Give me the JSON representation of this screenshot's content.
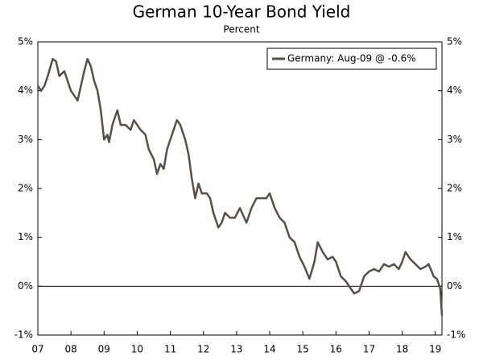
{
  "chart_data": {
    "type": "line",
    "title": "German 10-Year Bond Yield",
    "subtitle": "Percent",
    "x": [
      2007.0,
      2007.1,
      2007.2,
      2007.3,
      2007.45,
      2007.55,
      2007.65,
      2007.8,
      2007.9,
      2008.0,
      2008.1,
      2008.2,
      2008.3,
      2008.4,
      2008.5,
      2008.6,
      2008.7,
      2008.8,
      2008.9,
      2009.0,
      2009.1,
      2009.15,
      2009.25,
      2009.4,
      2009.5,
      2009.65,
      2009.8,
      2009.9,
      2010.0,
      2010.1,
      2010.25,
      2010.35,
      2010.5,
      2010.6,
      2010.7,
      2010.8,
      2010.9,
      2011.0,
      2011.1,
      2011.2,
      2011.3,
      2011.45,
      2011.55,
      2011.65,
      2011.75,
      2011.85,
      2011.95,
      2012.1,
      2012.2,
      2012.3,
      2012.45,
      2012.55,
      2012.65,
      2012.8,
      2012.95,
      2013.1,
      2013.3,
      2013.45,
      2013.6,
      2013.75,
      2013.9,
      2014.0,
      2014.15,
      2014.3,
      2014.45,
      2014.6,
      2014.75,
      2014.9,
      2015.05,
      2015.2,
      2015.35,
      2015.45,
      2015.6,
      2015.75,
      2015.9,
      2016.0,
      2016.15,
      2016.3,
      2016.45,
      2016.55,
      2016.7,
      2016.85,
      2017.0,
      2017.15,
      2017.3,
      2017.45,
      2017.6,
      2017.75,
      2017.9,
      2018.0,
      2018.1,
      2018.25,
      2018.4,
      2018.55,
      2018.7,
      2018.8,
      2018.95,
      2019.05,
      2019.15,
      2019.2
    ],
    "series": [
      {
        "name": "Germany: Aug-09 @ -0.6%",
        "color": "#5b4f45",
        "values": [
          4.1,
          4.0,
          4.1,
          4.3,
          4.65,
          4.6,
          4.3,
          4.4,
          4.2,
          4.0,
          3.9,
          3.8,
          4.1,
          4.4,
          4.65,
          4.5,
          4.2,
          4.0,
          3.6,
          3.0,
          3.1,
          2.95,
          3.3,
          3.6,
          3.3,
          3.3,
          3.2,
          3.4,
          3.3,
          3.2,
          3.1,
          2.8,
          2.6,
          2.3,
          2.5,
          2.4,
          2.8,
          3.0,
          3.2,
          3.4,
          3.3,
          3.0,
          2.7,
          2.2,
          1.8,
          2.1,
          1.9,
          1.9,
          1.8,
          1.5,
          1.2,
          1.3,
          1.5,
          1.4,
          1.4,
          1.6,
          1.3,
          1.6,
          1.8,
          1.8,
          1.8,
          1.9,
          1.6,
          1.4,
          1.3,
          1.0,
          0.9,
          0.6,
          0.4,
          0.15,
          0.5,
          0.9,
          0.7,
          0.55,
          0.6,
          0.5,
          0.2,
          0.1,
          -0.05,
          -0.15,
          -0.1,
          0.2,
          0.3,
          0.35,
          0.3,
          0.45,
          0.4,
          0.45,
          0.35,
          0.5,
          0.7,
          0.55,
          0.45,
          0.35,
          0.4,
          0.45,
          0.2,
          0.15,
          -0.05,
          -0.6
        ]
      }
    ],
    "xlim": [
      2007,
      2019.2
    ],
    "xticks": [
      {
        "value": 2007,
        "label": "07"
      },
      {
        "value": 2008,
        "label": "08"
      },
      {
        "value": 2009,
        "label": "09"
      },
      {
        "value": 2010,
        "label": "10"
      },
      {
        "value": 2011,
        "label": "11"
      },
      {
        "value": 2012,
        "label": "12"
      },
      {
        "value": 2013,
        "label": "13"
      },
      {
        "value": 2014,
        "label": "14"
      },
      {
        "value": 2015,
        "label": "15"
      },
      {
        "value": 2016,
        "label": "16"
      },
      {
        "value": 2017,
        "label": "17"
      },
      {
        "value": 2018,
        "label": "18"
      },
      {
        "value": 2019,
        "label": "19"
      }
    ],
    "ylim": [
      -1,
      5
    ],
    "yticks": [
      {
        "value": -1,
        "label": "-1%"
      },
      {
        "value": 0,
        "label": "0%"
      },
      {
        "value": 1,
        "label": "1%"
      },
      {
        "value": 2,
        "label": "2%"
      },
      {
        "value": 3,
        "label": "3%"
      },
      {
        "value": 4,
        "label": "4%"
      },
      {
        "value": 5,
        "label": "5%"
      }
    ],
    "legend": "upper right"
  }
}
